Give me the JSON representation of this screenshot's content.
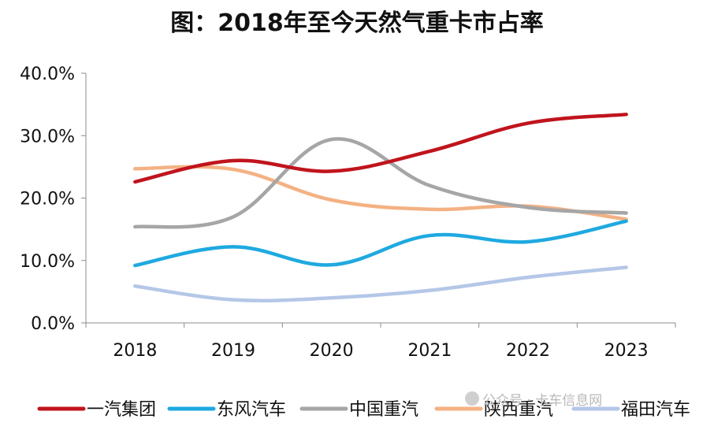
{
  "chart_data": {
    "type": "line",
    "title": "图：2018年至今天然气重卡市占率",
    "categories": [
      "2018",
      "2019",
      "2020",
      "2021",
      "2022",
      "2023"
    ],
    "ylim": [
      0,
      40
    ],
    "yticks": [
      "0.0%",
      "10.0%",
      "20.0%",
      "30.0%",
      "40.0%"
    ],
    "ytick_values": [
      0,
      10,
      20,
      30,
      40
    ],
    "grid": false,
    "legend_position": "bottom",
    "series": [
      {
        "name": "一汽集团",
        "color": "#C0141C",
        "values": [
          22.6,
          26.0,
          24.3,
          27.5,
          32.0,
          33.4
        ]
      },
      {
        "name": "东风汽车",
        "color": "#1FA9E0",
        "values": [
          9.2,
          12.2,
          9.3,
          14.0,
          13.0,
          16.3
        ]
      },
      {
        "name": "中国重汽",
        "color": "#A6A6A6",
        "values": [
          15.4,
          17.0,
          29.4,
          22.0,
          18.5,
          17.6
        ]
      },
      {
        "name": "陕西重汽",
        "color": "#F4B183",
        "values": [
          24.7,
          24.6,
          19.7,
          18.2,
          18.7,
          16.6
        ]
      },
      {
        "name": "福田汽车",
        "color": "#B4C7E7",
        "values": [
          5.9,
          3.7,
          4.0,
          5.2,
          7.3,
          8.9
        ]
      }
    ]
  },
  "watermark": "公众号 · 卡车信息网"
}
